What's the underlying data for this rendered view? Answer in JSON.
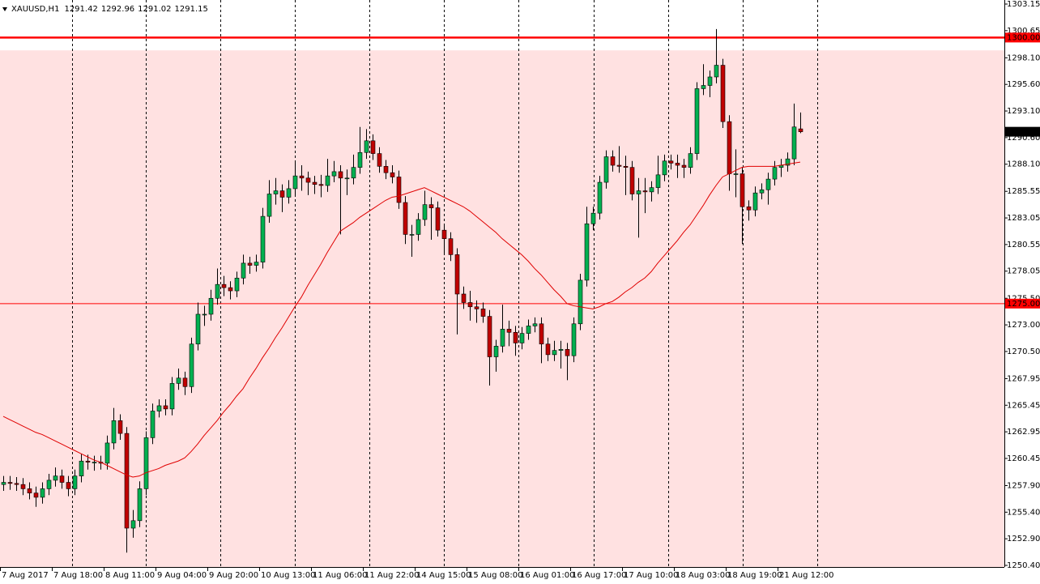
{
  "chart_data": {
    "type": "candlestick",
    "symbol": "XAUUSD,H1",
    "up_color": "#00b050",
    "down_color": "#c00000",
    "ma_color": "#e00000",
    "zone_color": "#ffe1e1",
    "zone_top": 1298.8,
    "levels": [
      {
        "value": 1300,
        "label": "1300.00",
        "width": 2.5
      },
      {
        "value": 1275,
        "label": "1275.00",
        "width": 1
      }
    ],
    "ylim": [
      1250.4,
      1303.15
    ],
    "yticks": [
      1303.15,
      1300.65,
      {
        "value": 1298.1,
        "label": "1298.10"
      },
      {
        "value": 1295.6,
        "label": "1295.60"
      },
      {
        "value": 1293.1,
        "label": "1293.10"
      },
      {
        "value": 1290.6,
        "label": "1290.60"
      },
      {
        "value": 1288.1,
        "label": "1288.10"
      },
      1285.55,
      1283.05,
      1280.55,
      1278.05,
      {
        "value": 1275.5,
        "label": "1275.50"
      },
      {
        "value": 1273,
        "label": "1273.00"
      },
      {
        "value": 1270.5,
        "label": "1270.50"
      },
      1267.95,
      1265.45,
      1262.95,
      1260.45,
      {
        "value": 1257.9,
        "label": "1257.90"
      },
      {
        "value": 1255.4,
        "label": "1255.40"
      },
      {
        "value": 1252.9,
        "label": "1252.90"
      },
      {
        "value": 1250.4,
        "label": "1250.40"
      }
    ],
    "categories": [
      "7 Aug 2017",
      null,
      null,
      null,
      null,
      null,
      null,
      null,
      "7 Aug 18:00",
      null,
      null,
      null,
      null,
      null,
      null,
      null,
      "8 Aug 11:00",
      null,
      null,
      null,
      null,
      null,
      null,
      null,
      "9 Aug 04:00",
      null,
      null,
      null,
      null,
      null,
      null,
      null,
      "9 Aug 20:00",
      null,
      null,
      null,
      null,
      null,
      null,
      null,
      "10 Aug 13:00",
      null,
      null,
      null,
      null,
      null,
      null,
      null,
      "11 Aug 06:00",
      null,
      null,
      null,
      null,
      null,
      null,
      null,
      "11 Aug 22:00",
      null,
      null,
      null,
      null,
      null,
      null,
      null,
      "14 Aug 15:00",
      null,
      null,
      null,
      null,
      null,
      null,
      null,
      "15 Aug 08:00",
      null,
      null,
      null,
      null,
      null,
      null,
      null,
      "16 Aug 01:00",
      null,
      null,
      null,
      null,
      null,
      null,
      null,
      "16 Aug 17:00",
      null,
      null,
      null,
      null,
      null,
      null,
      null,
      "17 Aug 10:00",
      null,
      null,
      null,
      null,
      null,
      null,
      null,
      "18 Aug 03:00",
      null,
      null,
      null,
      null,
      null,
      null,
      null,
      "18 Aug 19:00",
      null,
      null,
      null,
      null,
      null,
      null,
      null,
      "21 Aug 12:00",
      null,
      null,
      null
    ],
    "ohlc": [
      [
        1258.0,
        1258.8,
        1257.4,
        1258.2
      ],
      [
        1258.2,
        1258.8,
        1257.5,
        1258.1
      ],
      [
        1258.1,
        1258.7,
        1257.4,
        1258.0
      ],
      [
        1258.0,
        1258.6,
        1257.0,
        1257.6
      ],
      [
        1257.6,
        1258.2,
        1256.6,
        1257.2
      ],
      [
        1257.2,
        1257.8,
        1255.9,
        1256.8
      ],
      [
        1256.8,
        1258.2,
        1256.2,
        1257.6
      ],
      [
        1257.6,
        1259.0,
        1257.0,
        1258.4
      ],
      [
        1258.4,
        1259.6,
        1257.8,
        1258.8
      ],
      [
        1258.8,
        1259.4,
        1257.6,
        1258.2
      ],
      [
        1258.2,
        1258.8,
        1256.9,
        1257.6
      ],
      [
        1257.6,
        1259.4,
        1257.0,
        1258.8
      ],
      [
        1258.8,
        1260.9,
        1258.2,
        1260.2
      ],
      [
        1260.2,
        1260.8,
        1259.4,
        1260.1
      ],
      [
        1260.1,
        1260.7,
        1259.3,
        1260.1
      ],
      [
        1260.1,
        1260.7,
        1259.4,
        1260.0
      ],
      [
        1260.0,
        1262.6,
        1259.4,
        1261.9
      ],
      [
        1261.9,
        1265.2,
        1261.3,
        1264.0
      ],
      [
        1264.0,
        1264.6,
        1262.2,
        1262.8
      ],
      [
        1262.8,
        1263.4,
        1251.6,
        1253.9
      ],
      [
        1253.9,
        1255.6,
        1253.0,
        1254.6
      ],
      [
        1254.6,
        1258.3,
        1254.0,
        1257.6
      ],
      [
        1257.6,
        1263.0,
        1257.0,
        1262.4
      ],
      [
        1262.4,
        1265.6,
        1261.8,
        1264.9
      ],
      [
        1264.9,
        1266.0,
        1264.3,
        1265.4
      ],
      [
        1265.4,
        1266.0,
        1264.5,
        1265.1
      ],
      [
        1265.1,
        1268.1,
        1264.5,
        1267.5
      ],
      [
        1267.5,
        1268.9,
        1266.9,
        1268.0
      ],
      [
        1268.0,
        1268.6,
        1266.4,
        1267.2
      ],
      [
        1267.2,
        1271.8,
        1266.6,
        1271.2
      ],
      [
        1271.2,
        1275.1,
        1270.6,
        1274.0
      ],
      [
        1274.0,
        1274.8,
        1272.9,
        1274.0
      ],
      [
        1274.0,
        1276.3,
        1273.4,
        1275.5
      ],
      [
        1275.5,
        1278.3,
        1274.9,
        1276.8
      ],
      [
        1276.8,
        1277.6,
        1275.7,
        1276.5
      ],
      [
        1276.5,
        1277.1,
        1275.4,
        1276.2
      ],
      [
        1276.2,
        1278.0,
        1275.6,
        1277.4
      ],
      [
        1277.4,
        1279.6,
        1276.8,
        1278.8
      ],
      [
        1278.8,
        1279.4,
        1277.8,
        1278.6
      ],
      [
        1278.6,
        1279.6,
        1278.0,
        1278.9
      ],
      [
        1278.9,
        1284.0,
        1278.3,
        1283.2
      ],
      [
        1283.2,
        1286.6,
        1282.6,
        1285.3
      ],
      [
        1285.3,
        1286.8,
        1284.3,
        1285.6
      ],
      [
        1285.6,
        1286.2,
        1283.6,
        1285.0
      ],
      [
        1285.0,
        1286.6,
        1284.4,
        1285.8
      ],
      [
        1285.8,
        1288.4,
        1285.2,
        1287.0
      ],
      [
        1287.0,
        1288.0,
        1285.6,
        1286.8
      ],
      [
        1286.8,
        1287.4,
        1285.2,
        1286.4
      ],
      [
        1286.4,
        1287.0,
        1285.3,
        1286.2
      ],
      [
        1286.2,
        1287.1,
        1285.0,
        1286.1
      ],
      [
        1286.1,
        1288.6,
        1285.5,
        1287.0
      ],
      [
        1287.0,
        1288.4,
        1286.4,
        1287.4
      ],
      [
        1287.4,
        1288.0,
        1281.5,
        1286.8
      ],
      [
        1286.8,
        1287.6,
        1285.2,
        1286.8
      ],
      [
        1286.8,
        1289.0,
        1286.2,
        1287.8
      ],
      [
        1287.8,
        1291.6,
        1287.2,
        1289.2
      ],
      [
        1289.2,
        1291.4,
        1288.6,
        1290.3
      ],
      [
        1290.3,
        1290.9,
        1288.5,
        1289.1
      ],
      [
        1289.1,
        1289.7,
        1287.3,
        1287.9
      ],
      [
        1287.9,
        1288.5,
        1286.7,
        1287.3
      ],
      [
        1287.3,
        1288.0,
        1286.3,
        1286.9
      ],
      [
        1286.9,
        1287.5,
        1283.9,
        1284.5
      ],
      [
        1284.5,
        1285.1,
        1280.6,
        1281.5
      ],
      [
        1281.5,
        1282.4,
        1279.4,
        1281.5
      ],
      [
        1281.5,
        1283.5,
        1280.9,
        1282.9
      ],
      [
        1282.9,
        1285.6,
        1282.3,
        1284.3
      ],
      [
        1284.3,
        1285.0,
        1281.0,
        1284.0
      ],
      [
        1284.0,
        1284.6,
        1281.3,
        1281.9
      ],
      [
        1281.9,
        1282.5,
        1279.6,
        1281.1
      ],
      [
        1281.1,
        1281.7,
        1279.0,
        1279.6
      ],
      [
        1279.6,
        1280.2,
        1272.1,
        1275.9
      ],
      [
        1275.9,
        1276.6,
        1274.5,
        1275.1
      ],
      [
        1275.1,
        1276.2,
        1273.4,
        1274.7
      ],
      [
        1274.7,
        1275.3,
        1273.2,
        1274.5
      ],
      [
        1274.5,
        1275.1,
        1273.2,
        1273.8
      ],
      [
        1273.8,
        1274.4,
        1267.3,
        1270.0
      ],
      [
        1270.0,
        1271.6,
        1268.6,
        1271.0
      ],
      [
        1271.0,
        1274.9,
        1270.4,
        1272.6
      ],
      [
        1272.6,
        1273.4,
        1271.0,
        1272.3
      ],
      [
        1272.3,
        1272.9,
        1270.1,
        1271.3
      ],
      [
        1271.3,
        1272.8,
        1270.7,
        1272.2
      ],
      [
        1272.2,
        1273.5,
        1271.6,
        1272.9
      ],
      [
        1272.9,
        1273.7,
        1272.3,
        1273.1
      ],
      [
        1273.1,
        1273.7,
        1269.4,
        1271.2
      ],
      [
        1271.2,
        1271.8,
        1269.6,
        1270.2
      ],
      [
        1270.2,
        1271.5,
        1269.6,
        1270.6
      ],
      [
        1270.6,
        1271.5,
        1268.9,
        1270.7
      ],
      [
        1270.7,
        1271.3,
        1267.8,
        1270.1
      ],
      [
        1270.1,
        1273.7,
        1269.5,
        1273.1
      ],
      [
        1273.1,
        1277.8,
        1272.5,
        1277.2
      ],
      [
        1277.2,
        1284.1,
        1276.6,
        1282.5
      ],
      [
        1282.5,
        1284.1,
        1281.9,
        1283.5
      ],
      [
        1283.5,
        1287.0,
        1282.9,
        1286.4
      ],
      [
        1286.4,
        1289.4,
        1285.8,
        1288.8
      ],
      [
        1288.8,
        1289.4,
        1287.4,
        1288.0
      ],
      [
        1288.0,
        1289.8,
        1287.3,
        1287.9
      ],
      [
        1287.9,
        1288.9,
        1285.2,
        1287.8
      ],
      [
        1287.8,
        1288.4,
        1284.7,
        1285.3
      ],
      [
        1285.3,
        1286.8,
        1281.2,
        1285.6
      ],
      [
        1285.6,
        1286.8,
        1283.5,
        1285.5
      ],
      [
        1285.5,
        1286.5,
        1284.6,
        1285.9
      ],
      [
        1285.9,
        1288.9,
        1285.3,
        1287.1
      ],
      [
        1287.1,
        1289.0,
        1286.5,
        1288.4
      ],
      [
        1288.4,
        1289.0,
        1287.6,
        1288.2
      ],
      [
        1288.2,
        1289.0,
        1286.8,
        1288.0
      ],
      [
        1288.0,
        1288.6,
        1286.8,
        1287.8
      ],
      [
        1287.8,
        1289.7,
        1287.2,
        1289.1
      ],
      [
        1289.1,
        1295.8,
        1288.5,
        1295.2
      ],
      [
        1295.2,
        1297.5,
        1294.6,
        1295.5
      ],
      [
        1295.5,
        1296.9,
        1294.4,
        1296.3
      ],
      [
        1296.3,
        1300.8,
        1295.7,
        1297.4
      ],
      [
        1297.4,
        1298.0,
        1291.5,
        1292.1
      ],
      [
        1292.1,
        1292.7,
        1285.6,
        1287.2
      ],
      [
        1287.2,
        1289.5,
        1285.0,
        1287.2
      ],
      [
        1287.2,
        1287.8,
        1280.6,
        1284.1
      ],
      [
        1284.1,
        1284.7,
        1282.8,
        1283.8
      ],
      [
        1283.8,
        1286.0,
        1283.2,
        1285.4
      ],
      [
        1285.4,
        1286.3,
        1284.8,
        1285.7
      ],
      [
        1285.7,
        1287.3,
        1284.3,
        1286.7
      ],
      [
        1286.7,
        1288.4,
        1286.1,
        1287.8
      ],
      [
        1287.8,
        1288.6,
        1286.9,
        1288.0
      ],
      [
        1288.0,
        1289.2,
        1287.4,
        1288.6
      ],
      [
        1288.6,
        1293.8,
        1288.0,
        1291.6
      ],
      [
        1291.42,
        1292.96,
        1291.02,
        1291.15
      ]
    ],
    "ma": [
      1264.4,
      1264.1,
      1263.8,
      1263.5,
      1263.2,
      1262.9,
      1262.7,
      1262.4,
      1262.1,
      1261.8,
      1261.5,
      1261.2,
      1260.9,
      1260.6,
      1260.3,
      1260.1,
      1259.8,
      1259.5,
      1259.2,
      1258.9,
      1258.7,
      1258.8,
      1259.1,
      1259.3,
      1259.5,
      1259.8,
      1260.0,
      1260.2,
      1260.5,
      1261.1,
      1261.8,
      1262.6,
      1263.3,
      1264.0,
      1264.8,
      1265.5,
      1266.3,
      1267.0,
      1268.0,
      1268.9,
      1269.9,
      1270.8,
      1271.8,
      1272.7,
      1273.7,
      1274.7,
      1275.6,
      1276.7,
      1277.7,
      1278.7,
      1279.8,
      1280.8,
      1281.8,
      1282.2,
      1282.6,
      1283.1,
      1283.5,
      1283.9,
      1284.3,
      1284.7,
      1285.0,
      1285.1,
      1285.3,
      1285.5,
      1285.7,
      1285.9,
      1285.6,
      1285.3,
      1285.0,
      1284.7,
      1284.4,
      1284.1,
      1283.7,
      1283.2,
      1282.7,
      1282.2,
      1281.7,
      1281.1,
      1280.6,
      1280.1,
      1279.6,
      1279.0,
      1278.3,
      1277.7,
      1277.0,
      1276.3,
      1275.7,
      1275.0,
      1274.8,
      1274.7,
      1274.6,
      1274.5,
      1274.7,
      1275.0,
      1275.2,
      1275.6,
      1276.1,
      1276.5,
      1277.0,
      1277.4,
      1278.0,
      1278.8,
      1279.5,
      1280.2,
      1280.9,
      1281.7,
      1282.4,
      1283.3,
      1284.2,
      1285.2,
      1286.1,
      1286.9,
      1287.2,
      1287.5,
      1287.8,
      1287.9,
      1287.9,
      1287.9,
      1287.9,
      1287.9,
      1288.0,
      1288.1,
      1288.2,
      1288.3
    ]
  }
}
